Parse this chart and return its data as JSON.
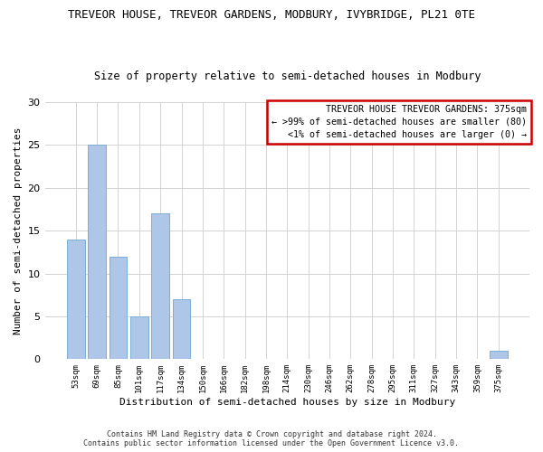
{
  "title1": "TREVEOR HOUSE, TREVEOR GARDENS, MODBURY, IVYBRIDGE, PL21 0TE",
  "title2": "Size of property relative to semi-detached houses in Modbury",
  "xlabel": "Distribution of semi-detached houses by size in Modbury",
  "ylabel": "Number of semi-detached properties",
  "categories": [
    "53sqm",
    "69sqm",
    "85sqm",
    "101sqm",
    "117sqm",
    "134sqm",
    "150sqm",
    "166sqm",
    "182sqm",
    "198sqm",
    "214sqm",
    "230sqm",
    "246sqm",
    "262sqm",
    "278sqm",
    "295sqm",
    "311sqm",
    "327sqm",
    "343sqm",
    "359sqm",
    "375sqm"
  ],
  "values": [
    14,
    25,
    12,
    5,
    17,
    7,
    0,
    0,
    0,
    0,
    0,
    0,
    0,
    0,
    0,
    0,
    0,
    0,
    0,
    0,
    1
  ],
  "bar_color": "#aec6e8",
  "bar_edge_color": "#7bafd4",
  "ylim": [
    0,
    30
  ],
  "yticks": [
    0,
    5,
    10,
    15,
    20,
    25,
    30
  ],
  "legend_title": "TREVEOR HOUSE TREVEOR GARDENS: 375sqm",
  "legend_line1": "← >99% of semi-detached houses are smaller (80)",
  "legend_line2": "  <1% of semi-detached houses are larger (0) →",
  "legend_box_color": "#ffffff",
  "legend_box_edge": "#cc0000",
  "footer1": "Contains HM Land Registry data © Crown copyright and database right 2024.",
  "footer2": "Contains public sector information licensed under the Open Government Licence v3.0.",
  "background_color": "#ffffff",
  "grid_color": "#cccccc"
}
